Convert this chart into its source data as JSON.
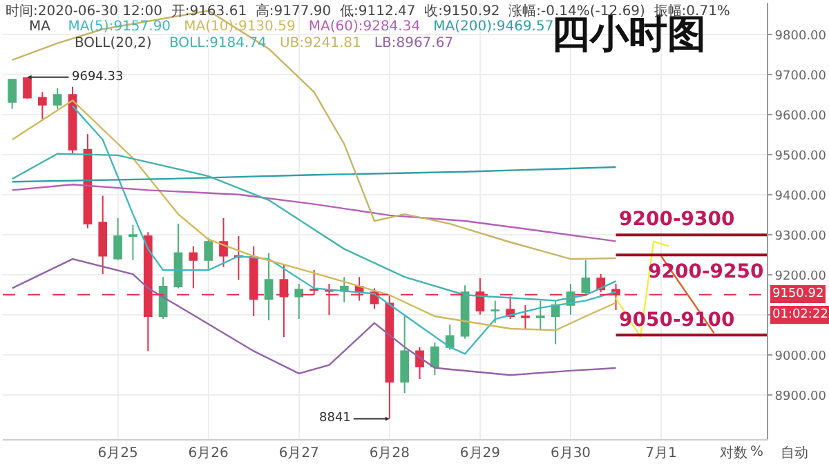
{
  "chart_data": {
    "type": "candlestick",
    "title": "四小时图",
    "annotations": [
      "时间:2020-06-30 12:00  开:9163.61  高:9177.90  低:9112.47  收:9150.92  涨幅:-0.14%(-12.69)  振幅:0.71%",
      "MA",
      "MA(5):9157.90",
      "MA(10):9130.59",
      "MA(60):9284.34",
      "MA(200):9469.57",
      "BOLL(20,2)",
      "BOLL:9184.74",
      "UB:9241.81",
      "LB:8967.67",
      "01:02:22",
      "对数",
      "%",
      "自动",
      {
        "text": "9694.33",
        "x": "2020-06-24T00:00",
        "y": 9694.33
      },
      {
        "text": "8841",
        "x": "2020-06-28T00:00",
        "y": 8841
      },
      {
        "text": "9200-9300",
        "x": "2020-06-30T12:00",
        "y": 9300
      },
      {
        "text": "9200-9250",
        "x": "2020-07-02T04:00",
        "y": 9250
      },
      {
        "text": "9050-9100",
        "x": "2020-06-30T12:00",
        "y": 9050
      }
    ],
    "x": [
      "2020-06-23T20:00",
      "2020-06-24T00:00",
      "2020-06-24T04:00",
      "2020-06-24T08:00",
      "2020-06-24T12:00",
      "2020-06-24T16:00",
      "2020-06-24T20:00",
      "2020-06-25T00:00",
      "2020-06-25T04:00",
      "2020-06-25T08:00",
      "2020-06-25T12:00",
      "2020-06-25T16:00",
      "2020-06-25T20:00",
      "2020-06-26T00:00",
      "2020-06-26T04:00",
      "2020-06-26T08:00",
      "2020-06-26T12:00",
      "2020-06-26T16:00",
      "2020-06-26T20:00",
      "2020-06-27T00:00",
      "2020-06-27T04:00",
      "2020-06-27T08:00",
      "2020-06-27T12:00",
      "2020-06-27T16:00",
      "2020-06-27T20:00",
      "2020-06-28T00:00",
      "2020-06-28T04:00",
      "2020-06-28T08:00",
      "2020-06-28T12:00",
      "2020-06-28T16:00",
      "2020-06-28T20:00",
      "2020-06-29T00:00",
      "2020-06-29T04:00",
      "2020-06-29T08:00",
      "2020-06-29T12:00",
      "2020-06-29T16:00",
      "2020-06-29T20:00",
      "2020-06-30T00:00",
      "2020-06-30T04:00",
      "2020-06-30T08:00",
      "2020-06-30T12:00"
    ],
    "ohlc": [
      [
        9632,
        9690,
        9615,
        9688
      ],
      [
        9692,
        9694.33,
        9640,
        9643
      ],
      [
        9643,
        9657,
        9590,
        9625
      ],
      [
        9625,
        9667,
        9615,
        9650
      ],
      [
        9650,
        9670,
        9503,
        9513
      ],
      [
        9513,
        9552,
        9317,
        9328
      ],
      [
        9331,
        9398,
        9202,
        9248
      ],
      [
        9241,
        9342,
        9237,
        9297
      ],
      [
        9297,
        9325,
        9237,
        9300
      ],
      [
        9297,
        9307,
        9010,
        9097
      ],
      [
        9097,
        9195,
        9090,
        9171
      ],
      [
        9171,
        9328,
        9167,
        9255
      ],
      [
        9255,
        9272,
        9167,
        9237
      ],
      [
        9237,
        9293,
        9212,
        9283
      ],
      [
        9283,
        9342,
        9220,
        9248
      ],
      [
        9248,
        9297,
        9188,
        9245
      ],
      [
        9245,
        9272,
        9097,
        9140
      ],
      [
        9140,
        9255,
        9087,
        9188
      ],
      [
        9188,
        9227,
        9045,
        9146
      ],
      [
        9146,
        9178,
        9090,
        9164
      ],
      [
        9164,
        9213,
        9150,
        9162
      ],
      [
        9162,
        9178,
        9100,
        9160
      ],
      [
        9160,
        9195,
        9132,
        9171
      ],
      [
        9171,
        9195,
        9136,
        9157
      ],
      [
        9157,
        9167,
        9115,
        9129
      ],
      [
        9129,
        9150,
        8841,
        8933
      ],
      [
        8933,
        9097,
        8905,
        9010
      ],
      [
        9010,
        9020,
        8940,
        8971
      ],
      [
        8971,
        9031,
        8950,
        9020
      ],
      [
        9020,
        9076,
        9013,
        9048
      ],
      [
        9048,
        9174,
        9041,
        9157
      ],
      [
        9157,
        9192,
        9101,
        9111
      ],
      [
        9111,
        9136,
        9080,
        9112
      ],
      [
        9114,
        9146,
        9090,
        9097
      ],
      [
        9097,
        9125,
        9066,
        9094
      ],
      [
        9094,
        9136,
        9062,
        9097
      ],
      [
        9097,
        9136,
        9027,
        9125
      ],
      [
        9125,
        9178,
        9101,
        9157
      ],
      [
        9157,
        9237,
        9153,
        9192
      ],
      [
        9192,
        9202,
        9157,
        9164
      ],
      [
        9163.61,
        9177.9,
        9112.47,
        9150.92
      ]
    ],
    "colors": [
      "#4caf7d",
      "#e0314b",
      "#e0314b",
      "#4caf7d",
      "#e0314b",
      "#e0314b",
      "#e0314b",
      "#4caf7d",
      "#4caf7d",
      "#e0314b",
      "#4caf7d",
      "#4caf7d",
      "#e0314b",
      "#4caf7d",
      "#e0314b",
      "#e0314b",
      "#e0314b",
      "#4caf7d",
      "#e0314b",
      "#4caf7d",
      "#e0314b",
      "#e0314b",
      "#4caf7d",
      "#e0314b",
      "#e0314b",
      "#e0314b",
      "#4caf7d",
      "#e0314b",
      "#4caf7d",
      "#4caf7d",
      "#4caf7d",
      "#e0314b",
      "#4caf7d",
      "#e0314b",
      "#e0314b",
      "#4caf7d",
      "#4caf7d",
      "#4caf7d",
      "#4caf7d",
      "#e0314b",
      "#e0314b"
    ],
    "series": [
      {
        "type": "line",
        "color": "#3fb8c0",
        "x": [
          "2020-06-24T12:00",
          "2020-06-24T20:00",
          "2020-06-25T04:00",
          "2020-06-25T08:00",
          "2020-06-25T12:00",
          "2020-06-26T00:00",
          "2020-06-26T08:00",
          "2020-06-26T16:00",
          "2020-06-27T04:00",
          "2020-06-27T20:00",
          "2020-06-28T08:00",
          "2020-06-28T16:00",
          "2020-06-28T20:00",
          "2020-06-29T04:00",
          "2020-06-29T16:00",
          "2020-06-30T04:00",
          "2020-06-30T12:00"
        ],
        "values": [
          9622,
          9538,
          9352,
          9265,
          9212,
          9212,
          9247,
          9240,
          9167,
          9153,
          9073,
          9020,
          9003,
          9090,
          9118,
          9136,
          9157.9
        ]
      },
      {
        "type": "line",
        "color": "#d2b85a",
        "x": [
          "2020-06-23T20:00",
          "2020-06-24T12:00",
          "2020-06-25T04:00",
          "2020-06-25T16:00",
          "2020-06-26T00:00",
          "2020-06-26T12:00",
          "2020-06-27T04:00",
          "2020-06-28T00:00",
          "2020-06-28T12:00",
          "2020-06-29T08:00",
          "2020-06-29T20:00",
          "2020-06-30T04:00",
          "2020-06-30T12:00"
        ],
        "values": [
          9538,
          9636,
          9492,
          9352,
          9289,
          9247,
          9205,
          9150,
          9097,
          9066,
          9062,
          9097,
          9130.59
        ]
      },
      {
        "type": "line",
        "color": "#b45fb8",
        "x": [
          "2020-06-23T20:00",
          "2020-06-24T12:00",
          "2020-06-25T08:00",
          "2020-06-26T08:00",
          "2020-06-27T04:00",
          "2020-06-28T00:00",
          "2020-06-28T20:00",
          "2020-06-29T16:00",
          "2020-06-30T12:00"
        ],
        "values": [
          9412,
          9426,
          9412,
          9401,
          9377,
          9349,
          9335,
          9310,
          9284.34
        ]
      },
      {
        "type": "line",
        "color": "#2f9fa8",
        "x": [
          "2020-06-23T20:00",
          "2020-06-25T12:00",
          "2020-06-27T04:00",
          "2020-06-28T20:00",
          "2020-06-30T12:00"
        ],
        "values": [
          9433,
          9440,
          9450,
          9458,
          9469.57
        ]
      },
      {
        "type": "line",
        "color": "#45b3b0",
        "x": [
          "2020-06-23T20:00",
          "2020-06-24T08:00",
          "2020-06-25T00:00",
          "2020-06-26T00:00",
          "2020-06-26T16:00",
          "2020-06-27T12:00",
          "2020-06-28T04:00",
          "2020-06-28T20:00",
          "2020-06-29T20:00",
          "2020-06-30T04:00",
          "2020-06-30T12:00"
        ],
        "values": [
          9440,
          9503,
          9499,
          9447,
          9387,
          9265,
          9195,
          9150,
          9136,
          9150,
          9184.74
        ]
      },
      {
        "type": "line",
        "color": "#c8b464",
        "x": [
          "2020-06-23T20:00",
          "2020-06-24T08:00",
          "2020-06-24T20:00",
          "2020-06-26T00:00",
          "2020-06-26T16:00",
          "2020-06-27T04:00",
          "2020-06-27T12:00",
          "2020-06-27T20:00",
          "2020-06-28T04:00",
          "2020-06-28T16:00",
          "2020-06-29T08:00",
          "2020-06-30T00:00",
          "2020-06-30T12:00"
        ],
        "values": [
          9737,
          9779,
          9814,
          9860,
          9765,
          9657,
          9527,
          9335,
          9352,
          9328,
          9282,
          9240,
          9241.81
        ]
      },
      {
        "type": "line",
        "color": "#9462a6",
        "x": [
          "2020-06-23T20:00",
          "2020-06-24T12:00",
          "2020-06-25T04:00",
          "2020-06-25T08:00",
          "2020-06-25T20:00",
          "2020-06-26T12:00",
          "2020-06-27T00:00",
          "2020-06-27T08:00",
          "2020-06-27T20:00",
          "2020-06-28T04:00",
          "2020-06-28T12:00",
          "2020-06-29T08:00",
          "2020-06-30T00:00",
          "2020-06-30T12:00"
        ],
        "values": [
          9167,
          9240,
          9202,
          9167,
          9100,
          9010,
          8954,
          8975,
          9080,
          9020,
          8968,
          8950,
          8961,
          8967.67
        ]
      },
      {
        "type": "line",
        "color": "#f2ee3c",
        "x": [
          "2020-06-30T12:00",
          "2020-06-30T18:30",
          "2020-06-30T22:00",
          "2020-07-01T02:00"
        ],
        "values": [
          9143,
          9045,
          9283,
          9272
        ]
      },
      {
        "type": "line",
        "color": "#d9652b",
        "x": [
          "2020-07-01T00:00",
          "2020-07-01T14:00"
        ],
        "values": [
          9247,
          9055
        ]
      }
    ],
    "xlim": [
      "2020-06-23T17:30",
      "2020-07-02T04:00"
    ],
    "xticks": [
      {
        "value": "2020-06-25",
        "label": "6月25"
      },
      {
        "value": "2020-06-26",
        "label": "6月26"
      },
      {
        "value": "2020-06-27",
        "label": "6月27"
      },
      {
        "value": "2020-06-28",
        "label": "6月28"
      },
      {
        "value": "2020-06-29",
        "label": "6月29"
      },
      {
        "value": "2020-06-30",
        "label": "6月30"
      },
      {
        "value": "2020-07-01",
        "label": "7月1"
      }
    ],
    "ylim": [
      8790,
      9880
    ],
    "yticks": [
      {
        "value": 8900,
        "label": "8900.00"
      },
      {
        "value": 9000,
        "label": "9000.00"
      },
      {
        "value": 9100,
        "label": null
      },
      {
        "value": 9200,
        "label": "9200.00"
      },
      {
        "value": 9300,
        "label": "9300.00"
      },
      {
        "value": 9400,
        "label": "9400.00"
      },
      {
        "value": 9500,
        "label": "9500.00"
      },
      {
        "value": 9600,
        "label": "9600.00"
      },
      {
        "value": 9700,
        "label": "9700.00"
      },
      {
        "value": 9800,
        "label": "9800.00"
      }
    ],
    "ref_lines": [
      {
        "axis": "y",
        "value": 9150.92,
        "label": "9150.92",
        "color": "#e0314b",
        "line_style": "dashed"
      },
      {
        "axis": "y",
        "value": 9300,
        "color": "#9b1020"
      },
      {
        "axis": "y",
        "value": 9250,
        "color": "#9b1020"
      },
      {
        "axis": "y",
        "value": 9050,
        "color": "#9b1020"
      }
    ],
    "grid": true
  }
}
